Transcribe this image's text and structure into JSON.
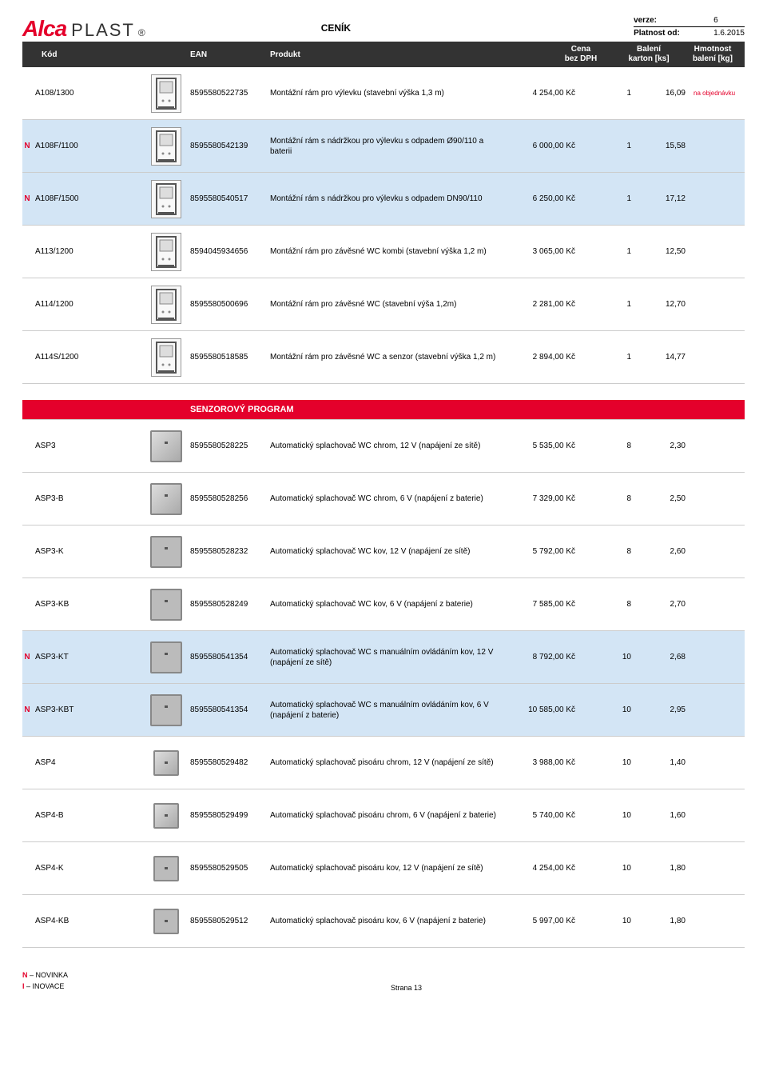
{
  "header": {
    "logo_alca": "Alca",
    "logo_plast": "PLAST",
    "logo_r": "®",
    "title": "CENÍK",
    "verze_lbl": "verze:",
    "verze_val": "6",
    "platnost_lbl": "Platnost od:",
    "platnost_val": "1.6.2015"
  },
  "cols": {
    "kod": "Kód",
    "ean": "EAN",
    "prod": "Produkt",
    "cena1": "Cena",
    "cena2": "bez DPH",
    "bal1": "Balení",
    "bal2": "karton [ks]",
    "hm1": "Hmotnost",
    "hm2": "balení [kg]"
  },
  "section": "SENZOROVÝ PROGRAM",
  "rows": [
    {
      "n": "",
      "hl": false,
      "kod": "A108/1300",
      "ean": "8595580522735",
      "prod": "Montážní rám pro výlevku (stavební výška 1,3 m)",
      "cena": "4 254,00 Kč",
      "bal": "1",
      "hm": "16,09",
      "note": "na objednávku",
      "icon": "frame1"
    },
    {
      "n": "N",
      "hl": true,
      "kod": "A108F/1100",
      "ean": "8595580542139",
      "prod": "Montážní rám s nádržkou pro výlevku s odpadem Ø90/110 a baterii",
      "cena": "6 000,00 Kč",
      "bal": "1",
      "hm": "15,58",
      "note": "",
      "icon": "frame2"
    },
    {
      "n": "N",
      "hl": true,
      "kod": "A108F/1500",
      "ean": "8595580540517",
      "prod": "Montážní rám s nádržkou pro výlevku s odpadem DN90/110",
      "cena": "6 250,00 Kč",
      "bal": "1",
      "hm": "17,12",
      "note": "",
      "icon": "frame3"
    },
    {
      "n": "",
      "hl": false,
      "kod": "A113/1200",
      "ean": "8594045934656",
      "prod": "Montážní rám pro závěsné WC kombi (stavební výška 1,2 m)",
      "cena": "3 065,00 Kč",
      "bal": "1",
      "hm": "12,50",
      "note": "",
      "icon": "frame4"
    },
    {
      "n": "",
      "hl": false,
      "kod": "A114/1200",
      "ean": "8595580500696",
      "prod": "Montážní rám pro závěsné WC (stavební výša 1,2m)",
      "cena": "2 281,00 Kč",
      "bal": "1",
      "hm": "12,70",
      "note": "",
      "icon": "frame5"
    },
    {
      "n": "",
      "hl": false,
      "kod": "A114S/1200",
      "ean": "8595580518585",
      "prod": "Montážní rám pro závěsné WC a senzor (stavební výška 1,2 m)",
      "cena": "2 894,00 Kč",
      "bal": "1",
      "hm": "14,77",
      "note": "",
      "icon": "frame6"
    }
  ],
  "rows2": [
    {
      "n": "",
      "hl": false,
      "kod": "ASP3",
      "ean": "8595580528225",
      "prod": "Automatický splachovač WC chrom, 12 V (napájení ze sítě)",
      "cena": "5 535,00 Kč",
      "bal": "8",
      "hm": "2,30",
      "note": "",
      "icon": "plate-chrome"
    },
    {
      "n": "",
      "hl": false,
      "kod": "ASP3-B",
      "ean": "8595580528256",
      "prod": "Automatický splachovač WC chrom, 6 V (napájení z baterie)",
      "cena": "7 329,00 Kč",
      "bal": "8",
      "hm": "2,50",
      "note": "",
      "icon": "plate-chrome"
    },
    {
      "n": "",
      "hl": false,
      "kod": "ASP3-K",
      "ean": "8595580528232",
      "prod": "Automatický splachovač WC kov, 12 V (napájení ze sítě)",
      "cena": "5 792,00 Kč",
      "bal": "8",
      "hm": "2,60",
      "note": "",
      "icon": "plate-kov"
    },
    {
      "n": "",
      "hl": false,
      "kod": "ASP3-KB",
      "ean": "8595580528249",
      "prod": "Automatický splachovač WC kov, 6 V (napájení z baterie)",
      "cena": "7 585,00 Kč",
      "bal": "8",
      "hm": "2,70",
      "note": "",
      "icon": "plate-kov"
    },
    {
      "n": "N",
      "hl": true,
      "kod": "ASP3-KT",
      "ean": "8595580541354",
      "prod": "Automatický splachovač WC s manuálním ovládáním kov, 12 V (napájení ze sítě)",
      "cena": "8 792,00 Kč",
      "bal": "10",
      "hm": "2,68",
      "note": "",
      "icon": "plate-kov"
    },
    {
      "n": "N",
      "hl": true,
      "kod": "ASP3-KBT",
      "ean": "8595580541354",
      "prod": "Automatický splachovač WC s manuálním ovládáním kov, 6 V (napájení z baterie)",
      "cena": "10 585,00 Kč",
      "bal": "10",
      "hm": "2,95",
      "note": "",
      "icon": "plate-kov"
    },
    {
      "n": "",
      "hl": false,
      "kod": "ASP4",
      "ean": "8595580529482",
      "prod": "Automatický splachovač pisoáru chrom, 12 V (napájení ze sítě)",
      "cena": "3 988,00 Kč",
      "bal": "10",
      "hm": "1,40",
      "note": "",
      "icon": "plate-chrome-sm"
    },
    {
      "n": "",
      "hl": false,
      "kod": "ASP4-B",
      "ean": "8595580529499",
      "prod": "Automatický splachovač pisoáru chrom, 6 V (napájení z baterie)",
      "cena": "5 740,00 Kč",
      "bal": "10",
      "hm": "1,60",
      "note": "",
      "icon": "plate-chrome-sm"
    },
    {
      "n": "",
      "hl": false,
      "kod": "ASP4-K",
      "ean": "8595580529505",
      "prod": "Automatický splachovač pisoáru kov, 12 V (napájení ze sítě)",
      "cena": "4 254,00 Kč",
      "bal": "10",
      "hm": "1,80",
      "note": "",
      "icon": "plate-kov-sm"
    },
    {
      "n": "",
      "hl": false,
      "kod": "ASP4-KB",
      "ean": "8595580529512",
      "prod": "Automatický splachovač pisoáru kov, 6 V (napájení z baterie)",
      "cena": "5 997,00 Kč",
      "bal": "10",
      "hm": "1,80",
      "note": "",
      "icon": "plate-kov-sm"
    }
  ],
  "footer": {
    "n": "N",
    "n_txt": "–  NOVINKA",
    "i": "I",
    "i_txt": "–  INOVACE",
    "page": "Strana 13"
  }
}
